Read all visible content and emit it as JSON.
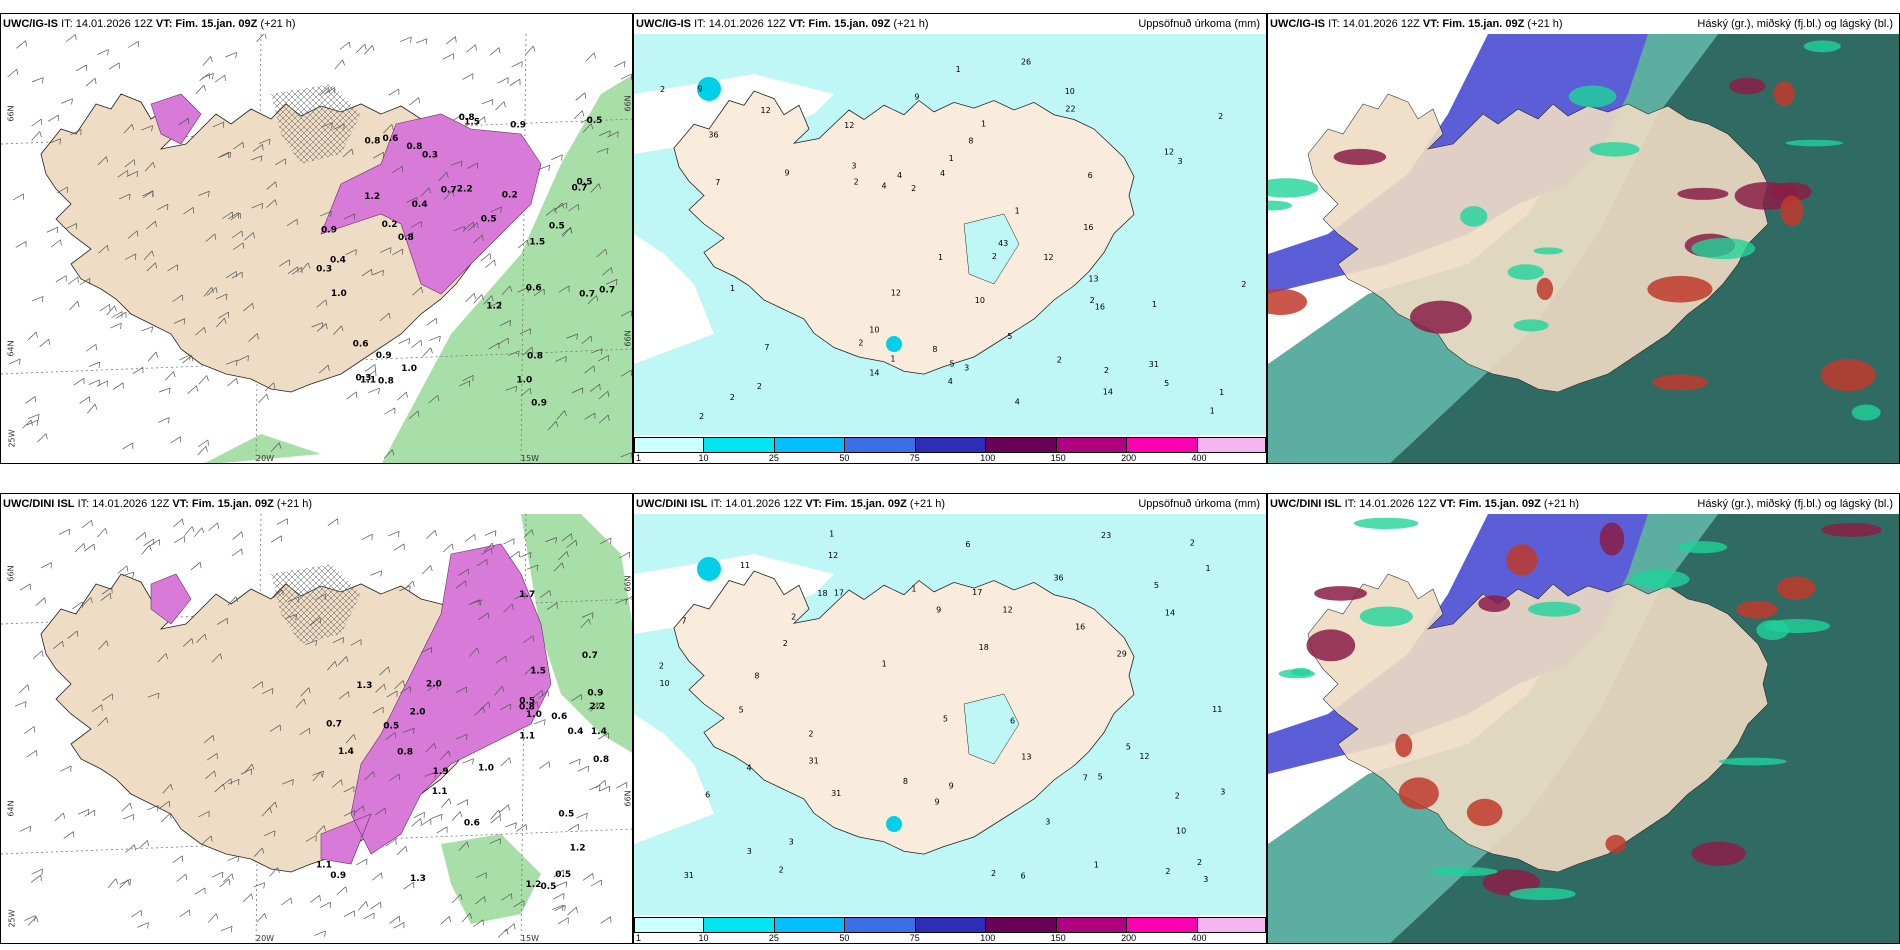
{
  "panels": [
    {
      "model": "UWC/IG-IS",
      "it": "IT: 14.01.2026 12Z",
      "vt": "VT: Fim. 15.jan. 09Z",
      "lead": "(+21 h)",
      "right": "",
      "axes": [
        "66N",
        "64N",
        "25W",
        "20W",
        "15W",
        "N99",
        "N99"
      ]
    },
    {
      "model": "UWC/IG-IS",
      "it": "IT: 14.01.2026 12Z",
      "vt": "VT: Fim. 15.jan. 09Z",
      "lead": "(+21 h)",
      "right": "Uppsöfnuð úrkoma (mm)"
    },
    {
      "model": "UWC/IG-IS",
      "it": "IT: 14.01.2026 12Z",
      "vt": "VT: Fim. 15.jan. 09Z",
      "lead": "(+21 h)",
      "right": "Háský (gr.), miðský (fj.bl.) og lágský (bl.)"
    },
    {
      "model": "UWC/DINI ISL",
      "it": "IT: 14.01.2026 12Z",
      "vt": "VT: Fim. 15.jan. 09Z",
      "lead": "(+21 h)",
      "right": "",
      "axes": [
        "66N",
        "64N",
        "25W",
        "20W",
        "15W",
        "N99",
        "N99"
      ]
    },
    {
      "model": "UWC/DINI ISL",
      "it": "IT: 14.01.2026 12Z",
      "vt": "VT: Fim. 15.jan. 09Z",
      "lead": "(+21 h)",
      "right": "Uppsöfnuð úrkoma (mm)"
    },
    {
      "model": "UWC/DINI ISL",
      "it": "IT: 14.01.2026 12Z",
      "vt": "VT: Fim. 15.jan. 09Z",
      "lead": "(+21 h)",
      "right": "Háský (gr.), miðský (fj.bl.) og lágský (bl.)"
    }
  ],
  "colorbar": {
    "ticks": [
      "1",
      "10",
      "25",
      "50",
      "75",
      "100",
      "150",
      "200",
      "400"
    ],
    "colors": [
      "#ccffff",
      "#00e5ee",
      "#00bfff",
      "#3a6fe8",
      "#2d2db8",
      "#6b0057",
      "#b0007f",
      "#ff00b0",
      "#f5b5f0"
    ]
  },
  "precip_labels_top": [
    "2",
    "1",
    "43",
    "10",
    "9",
    "26",
    "31",
    "10",
    "2",
    "2",
    "1",
    "2",
    "1",
    "1",
    "2",
    "3",
    "2",
    "1",
    "1",
    "2",
    "2",
    "2",
    "4",
    "12",
    "16",
    "22",
    "4",
    "8",
    "3",
    "5",
    "5",
    "12",
    "1",
    "2",
    "2",
    "4",
    "5",
    "6",
    "7",
    "8",
    "9",
    "10",
    "12",
    "14",
    "16",
    "4",
    "1",
    "3",
    "2",
    "1",
    "36",
    "4",
    "9",
    "14",
    "7",
    "12",
    "12",
    "2",
    "1",
    "13"
  ],
  "precip_labels_bottom": [
    "2",
    "5",
    "2",
    "12",
    "29",
    "31",
    "6",
    "5",
    "2",
    "2",
    "1",
    "1",
    "2",
    "17",
    "3",
    "4",
    "18",
    "23",
    "31",
    "3",
    "2",
    "1",
    "2",
    "3",
    "5",
    "6",
    "8",
    "10",
    "11",
    "13",
    "14",
    "5",
    "6",
    "7",
    "8",
    "9",
    "10",
    "11",
    "12",
    "16",
    "17",
    "3",
    "2",
    "2",
    "1",
    "36",
    "31",
    "9",
    "9",
    "7",
    "5",
    "6",
    "3",
    "2",
    "1",
    "12",
    "18"
  ],
  "snow_labels_top": [
    "2.2",
    "1.2",
    "0.4",
    "0.6",
    "0.5",
    "1.0",
    "0.8",
    "1.5",
    "0.9",
    "0.3",
    "0.5",
    "0.7",
    "0.3",
    "1.0",
    "0.6",
    "0.7",
    "0.9",
    "1.2",
    "1.5",
    "0.5",
    "0.8",
    "0.2",
    "1.1",
    "0.7",
    "0.8",
    "0.9",
    "0.6",
    "0.8",
    "0.7",
    "1.0",
    "0.3",
    "0.8",
    "0.5",
    "0.4",
    "0.8",
    "0.9",
    "0.2"
  ],
  "snow_labels_bottom": [
    "0.5",
    "1.2",
    "1.0",
    "2.2",
    "1.7",
    "1.5",
    "2.0",
    "1.9",
    "1.1",
    "0.8",
    "1.3",
    "0.9",
    "1.4",
    "0.6",
    "0.7",
    "0.5",
    "1.3",
    "1.1",
    "1.0",
    "1.2",
    "2.0",
    "0.4",
    "0.5",
    "0.8",
    "0.9",
    "0.5",
    "0.7",
    "1.4",
    "1.1",
    "0.6",
    "0.8",
    "0.5"
  ]
}
